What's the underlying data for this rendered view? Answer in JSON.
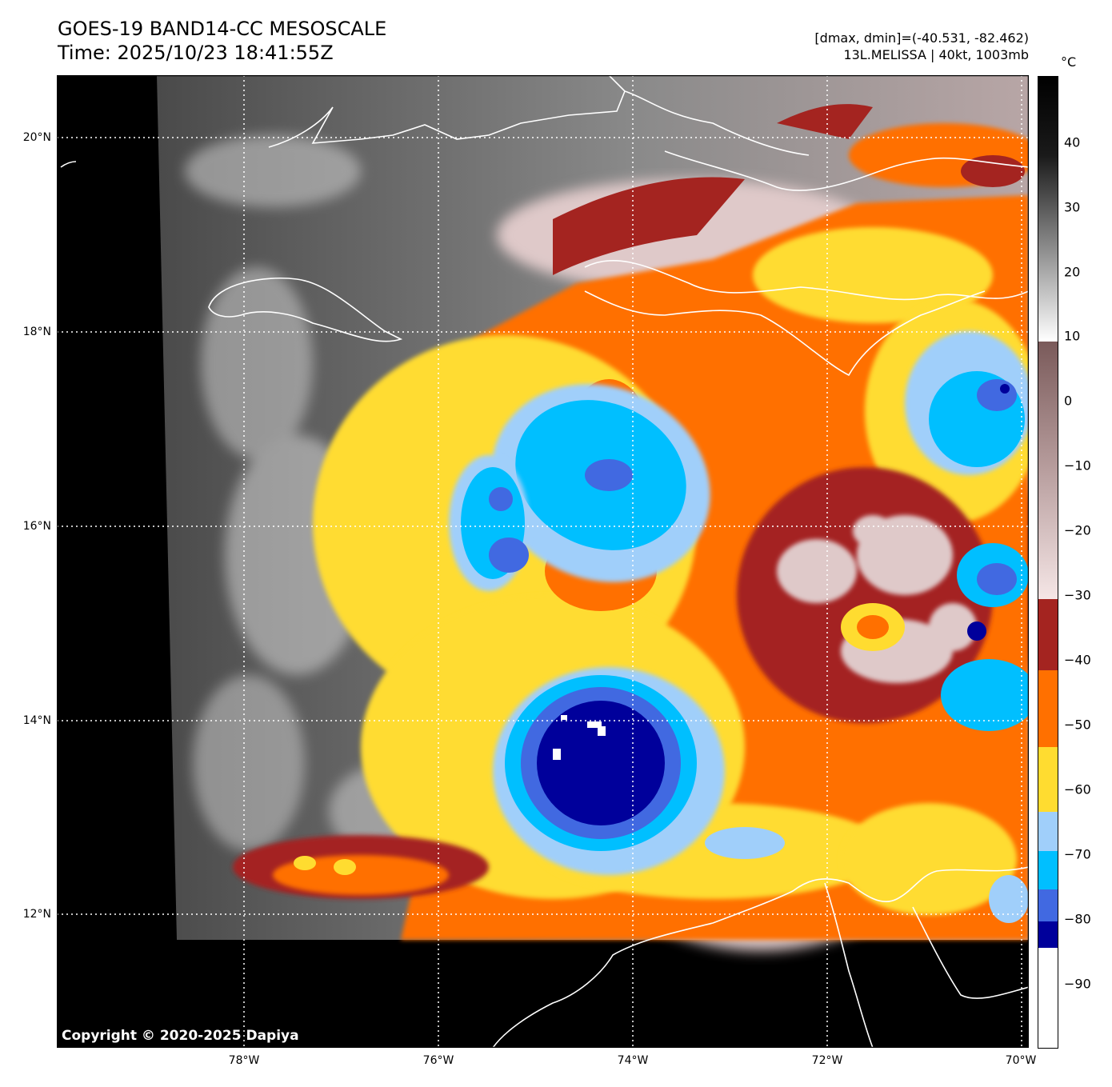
{
  "header": {
    "title_line1": "GOES-19 BAND14-CC MESOSCALE",
    "title_line2": "Time: 2025/10/23 18:41:55Z",
    "stats": "[dmax, dmin]=(-40.531, -82.462)",
    "storm": "13L.MELISSA | 40kt, 1003mb"
  },
  "map": {
    "copyright": "Copyright © 2020-2025 Dapiya",
    "lat_labels": [
      "20°N",
      "18°N",
      "16°N",
      "14°N",
      "12°N"
    ],
    "lon_labels": [
      "78°W",
      "76°W",
      "74°W",
      "72°W",
      "70°W"
    ],
    "extent": {
      "lon_min": -79.92,
      "lon_max": -69.92,
      "lat_min": 10.61,
      "lat_max": 20.62
    },
    "no_data_color": "#000000",
    "coastline_color": "#ffffff"
  },
  "colorbar": {
    "unit": "°C",
    "ticks": [
      "40",
      "30",
      "20",
      "10",
      "0",
      "−10",
      "−20",
      "−30",
      "−40",
      "−50",
      "−60",
      "−70",
      "−80",
      "−90"
    ],
    "range_c": [
      -100,
      50
    ],
    "colors": {
      "minus100_to_minus84": "#ffffff",
      "minus84_to_minus80": "#00009b",
      "minus80_to_minus75": "#4169e1",
      "minus75_to_minus69": "#00bfff",
      "minus69_to_minus63": "#a0cffa",
      "minus63_to_minus53": "#ffdc30",
      "minus53_to_minus41": "#ff7000",
      "minus41_to_minus30": "#a42420",
      "minus30_to_10": "#8b6a6a",
      "10_to_50": "#000000"
    }
  }
}
